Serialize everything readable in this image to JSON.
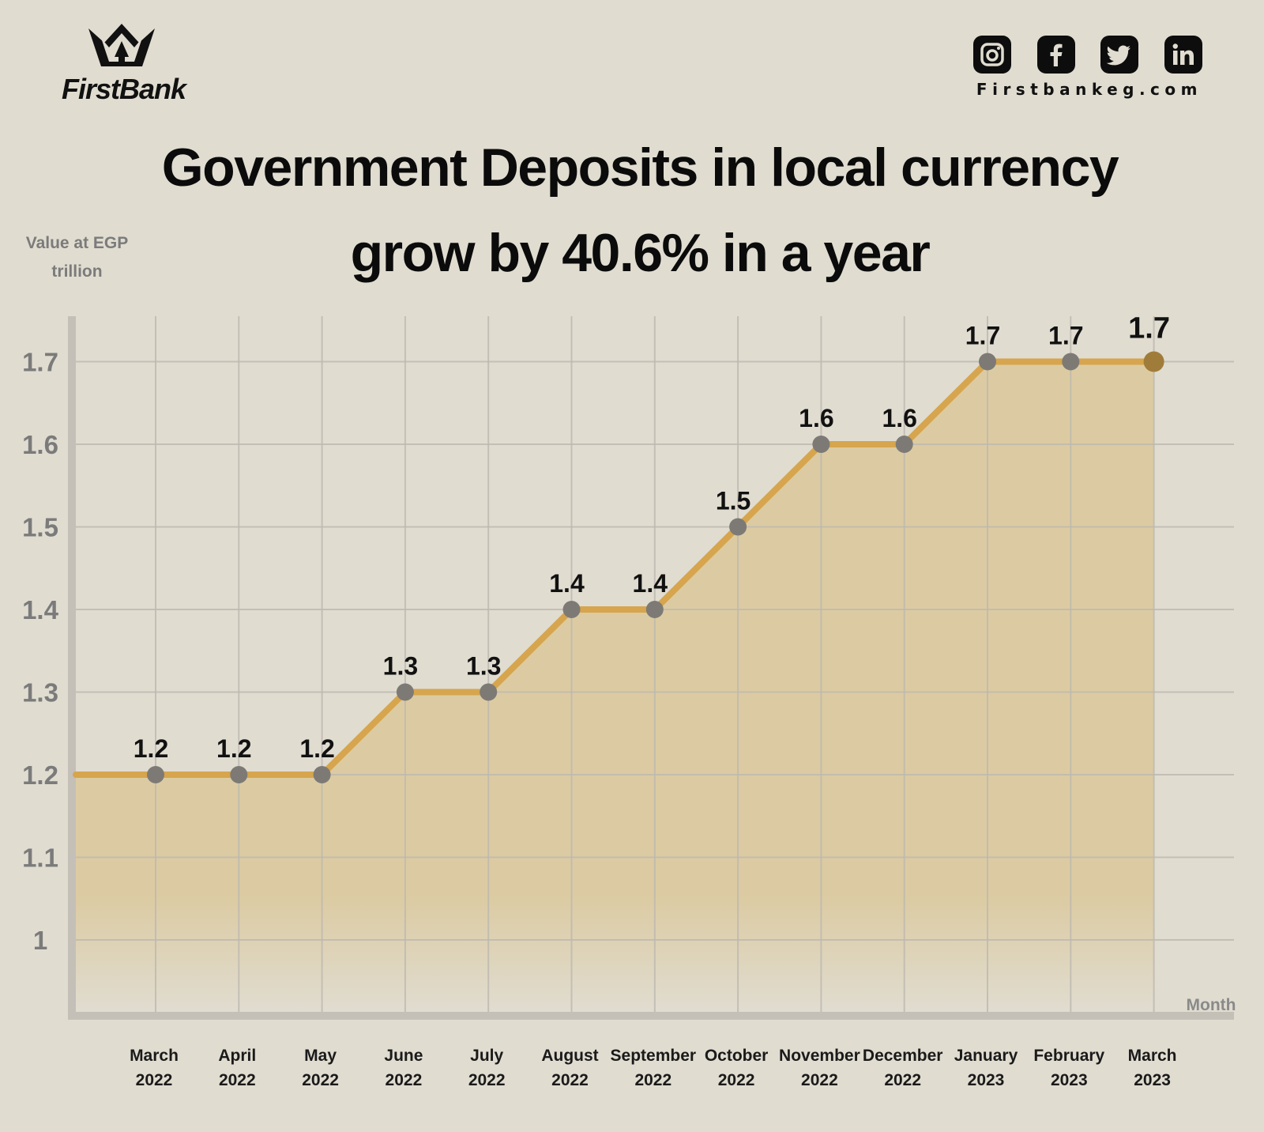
{
  "brand": {
    "name": "FirstBank",
    "logo_icon": "crown-icon"
  },
  "social": {
    "icons": [
      "instagram-icon",
      "facebook-icon",
      "twitter-icon",
      "linkedin-icon"
    ],
    "website": "Firstbankeg.com"
  },
  "title": {
    "line1": "Government Deposits in local currency",
    "line2": "grow by 40.6% in a year"
  },
  "colors": {
    "background": "#e0dcd0",
    "line": "#d6a54d",
    "area": "#dccba2",
    "marker": "#7d7a76",
    "last_marker": "#a07c3b",
    "grid": "#bdb9b0",
    "axis": "#c4c0b8"
  },
  "chart_data": {
    "type": "line",
    "title": "Government Deposits in local currency grow by 40.6% in a year",
    "ylabel": "Value at EGP trillion",
    "xlabel": "Month",
    "y_ticks": [
      "1.7",
      "1.6",
      "1.5",
      "1.4",
      "1.3",
      "1.2",
      "1.1",
      "1"
    ],
    "ylim": [
      0.91,
      1.755
    ],
    "grid": true,
    "area_fill": true,
    "categories": [
      {
        "month": "March",
        "year": "2022"
      },
      {
        "month": "April",
        "year": "2022"
      },
      {
        "month": "May",
        "year": "2022"
      },
      {
        "month": "June",
        "year": "2022"
      },
      {
        "month": "July",
        "year": "2022"
      },
      {
        "month": "August",
        "year": "2022"
      },
      {
        "month": "September",
        "year": "2022"
      },
      {
        "month": "October",
        "year": "2022"
      },
      {
        "month": "November",
        "year": "2022"
      },
      {
        "month": "December",
        "year": "2022"
      },
      {
        "month": "January",
        "year": "2023"
      },
      {
        "month": "February",
        "year": "2023"
      },
      {
        "month": "March",
        "year": "2023"
      }
    ],
    "values": [
      1.2,
      1.2,
      1.2,
      1.3,
      1.3,
      1.4,
      1.4,
      1.5,
      1.6,
      1.6,
      1.7,
      1.7,
      1.7
    ],
    "labels": [
      "1.2",
      "1.2",
      "1.2",
      "1.3",
      "1.3",
      "1.4",
      "1.4",
      "1.5",
      "1.6",
      "1.6",
      "1.7",
      "1.7",
      "1.7"
    ]
  }
}
